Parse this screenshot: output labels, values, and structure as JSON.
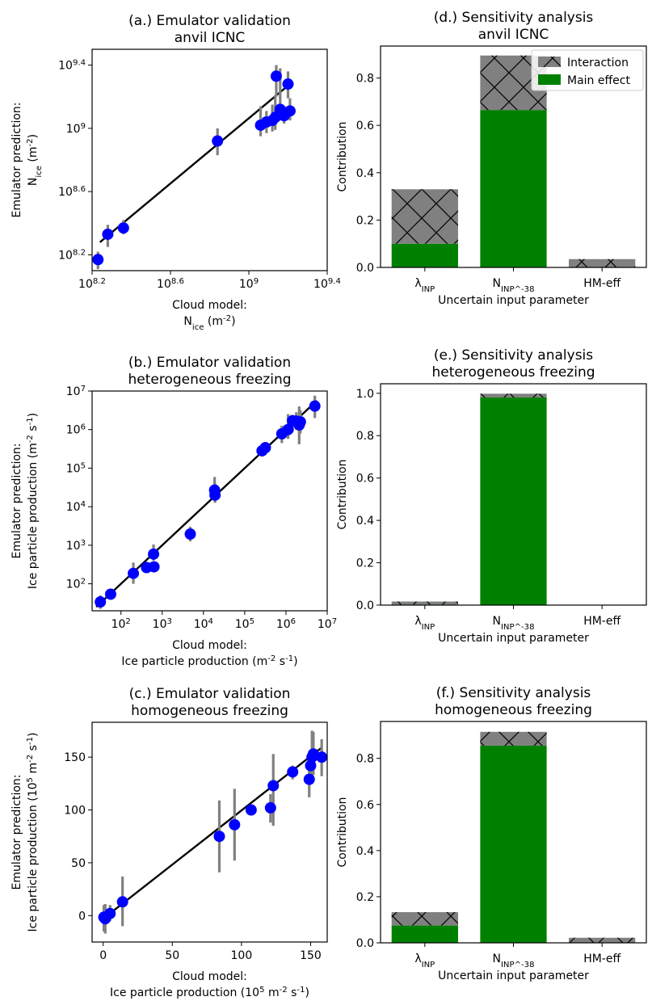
{
  "chart_data": [
    {
      "panel": "a",
      "type": "scatter",
      "title": [
        "(a.) Emulator validation",
        "anvil ICNC"
      ],
      "xlabel": [
        "Cloud model:",
        "N_ice (m^-2)"
      ],
      "ylabel": [
        "Emulator prediction:",
        "N_ice (m^-2)"
      ],
      "xscale": "log",
      "yscale": "log",
      "xlim": [
        8.2,
        9.4
      ],
      "ylim": [
        8.1,
        9.5
      ],
      "xticks": [
        {
          "v": 8.2,
          "b": "10",
          "e": "8.2"
        },
        {
          "v": 8.6,
          "b": "10",
          "e": "8.6"
        },
        {
          "v": 9.0,
          "b": "10",
          "e": "9"
        },
        {
          "v": 9.4,
          "b": "10",
          "e": "9.4"
        }
      ],
      "yticks": [
        {
          "v": 8.2,
          "b": "10",
          "e": "8.2"
        },
        {
          "v": 8.6,
          "b": "10",
          "e": "8.6"
        },
        {
          "v": 9.0,
          "b": "10",
          "e": "9"
        },
        {
          "v": 9.4,
          "b": "10",
          "e": "9.4"
        }
      ],
      "fit_line": [
        [
          8.24,
          8.28
        ],
        [
          9.2,
          9.27
        ]
      ],
      "points": [
        {
          "x": 8.23,
          "y": 8.17,
          "lo": 8.11,
          "hi": 8.22
        },
        {
          "x": 8.28,
          "y": 8.33,
          "lo": 8.25,
          "hi": 8.39
        },
        {
          "x": 8.36,
          "y": 8.37,
          "lo": 8.33,
          "hi": 8.42
        },
        {
          "x": 8.84,
          "y": 8.92,
          "lo": 8.83,
          "hi": 9.0
        },
        {
          "x": 9.06,
          "y": 9.02,
          "lo": 8.95,
          "hi": 9.14
        },
        {
          "x": 9.09,
          "y": 9.04,
          "lo": 8.97,
          "hi": 9.11
        },
        {
          "x": 9.12,
          "y": 9.05,
          "lo": 8.98,
          "hi": 9.15
        },
        {
          "x": 9.135,
          "y": 9.07,
          "lo": 8.99,
          "hi": 9.21
        },
        {
          "x": 9.14,
          "y": 9.33,
          "lo": 9.2,
          "hi": 9.4
        },
        {
          "x": 9.16,
          "y": 9.12,
          "lo": 9.05,
          "hi": 9.38
        },
        {
          "x": 9.18,
          "y": 9.08,
          "lo": 9.03,
          "hi": 9.14
        },
        {
          "x": 9.2,
          "y": 9.28,
          "lo": 9.19,
          "hi": 9.36
        },
        {
          "x": 9.21,
          "y": 9.11,
          "lo": 9.05,
          "hi": 9.19
        }
      ]
    },
    {
      "panel": "b",
      "type": "scatter",
      "title": [
        "(b.) Emulator validation",
        "heterogeneous freezing"
      ],
      "xlabel": [
        "Cloud model:",
        "Ice particle production  (m^-2 s^-1)"
      ],
      "ylabel": [
        "Emulator prediction:",
        "Ice particle production  (m^-2 s^-1)"
      ],
      "xscale": "log",
      "yscale": "log",
      "xlim": [
        1.3,
        7.0
      ],
      "ylim": [
        1.3,
        7.0
      ],
      "xticks": [
        {
          "v": 2,
          "b": "10",
          "e": "2"
        },
        {
          "v": 3,
          "b": "10",
          "e": "3"
        },
        {
          "v": 4,
          "b": "10",
          "e": "4"
        },
        {
          "v": 5,
          "b": "10",
          "e": "5"
        },
        {
          "v": 6,
          "b": "10",
          "e": "6"
        },
        {
          "v": 7,
          "b": "10",
          "e": "7"
        }
      ],
      "yticks": [
        {
          "v": 2,
          "b": "10",
          "e": "2"
        },
        {
          "v": 3,
          "b": "10",
          "e": "3"
        },
        {
          "v": 4,
          "b": "10",
          "e": "4"
        },
        {
          "v": 5,
          "b": "10",
          "e": "5"
        },
        {
          "v": 6,
          "b": "10",
          "e": "6"
        },
        {
          "v": 7,
          "b": "10",
          "e": "7"
        }
      ],
      "fit_line": [
        [
          1.4,
          1.4
        ],
        [
          6.75,
          6.75
        ]
      ],
      "points": [
        {
          "x": 1.5,
          "y": 1.53,
          "lo": 1.35,
          "hi": 1.7
        },
        {
          "x": 1.75,
          "y": 1.73,
          "lo": 1.63,
          "hi": 1.82
        },
        {
          "x": 2.3,
          "y": 2.27,
          "lo": 2.0,
          "hi": 2.55
        },
        {
          "x": 2.62,
          "y": 2.42,
          "lo": 2.3,
          "hi": 2.55
        },
        {
          "x": 2.79,
          "y": 2.77,
          "lo": 2.6,
          "hi": 3.02
        },
        {
          "x": 2.8,
          "y": 2.44,
          "lo": 2.32,
          "hi": 2.55
        },
        {
          "x": 3.68,
          "y": 3.29,
          "lo": 3.1,
          "hi": 3.48
        },
        {
          "x": 4.27,
          "y": 4.43,
          "lo": 4.2,
          "hi": 4.77
        },
        {
          "x": 4.28,
          "y": 4.3,
          "lo": 4.1,
          "hi": 4.6
        },
        {
          "x": 5.42,
          "y": 5.45,
          "lo": 5.3,
          "hi": 5.62
        },
        {
          "x": 5.5,
          "y": 5.53,
          "lo": 5.35,
          "hi": 5.68
        },
        {
          "x": 5.9,
          "y": 5.89,
          "lo": 5.65,
          "hi": 6.1
        },
        {
          "x": 6.05,
          "y": 6.0,
          "lo": 5.76,
          "hi": 6.4
        },
        {
          "x": 6.16,
          "y": 6.23,
          "lo": 5.95,
          "hi": 6.38
        },
        {
          "x": 6.25,
          "y": 6.22,
          "lo": 6.0,
          "hi": 6.45
        },
        {
          "x": 6.32,
          "y": 6.12,
          "lo": 5.62,
          "hi": 6.6
        },
        {
          "x": 6.35,
          "y": 6.2,
          "lo": 5.9,
          "hi": 6.5
        },
        {
          "x": 6.7,
          "y": 6.61,
          "lo": 6.3,
          "hi": 6.88
        }
      ]
    },
    {
      "panel": "c",
      "type": "scatter",
      "title": [
        "(c.) Emulator validation",
        "homogeneous freezing"
      ],
      "xlabel": [
        "Cloud model:",
        "Ice particle production  (10^5 m^-2 s^-1)"
      ],
      "ylabel": [
        "Emulator prediction:",
        "Ice particle production  (10^5 m^-2 s^-1)"
      ],
      "xscale": "linear",
      "yscale": "linear",
      "xlim": [
        -8,
        162
      ],
      "ylim": [
        -25,
        183
      ],
      "xticks": [
        0,
        50,
        100,
        150
      ],
      "yticks": [
        0,
        50,
        100,
        150
      ],
      "fit_line": [
        [
          0,
          -3
        ],
        [
          158,
          159
        ]
      ],
      "points": [
        {
          "x": 0.5,
          "y": -1.5,
          "lo": -15,
          "hi": 10
        },
        {
          "x": 1.5,
          "y": -3,
          "lo": -17,
          "hi": 11
        },
        {
          "x": 5,
          "y": 2,
          "lo": -5,
          "hi": 10
        },
        {
          "x": 14,
          "y": 13,
          "lo": -10,
          "hi": 37
        },
        {
          "x": 84,
          "y": 75,
          "lo": 41,
          "hi": 109
        },
        {
          "x": 95,
          "y": 86,
          "lo": 52,
          "hi": 120
        },
        {
          "x": 107,
          "y": 100,
          "lo": 95,
          "hi": 105
        },
        {
          "x": 121,
          "y": 102,
          "lo": 88,
          "hi": 115
        },
        {
          "x": 123,
          "y": 123,
          "lo": 85,
          "hi": 153
        },
        {
          "x": 137,
          "y": 136,
          "lo": 129,
          "hi": 142
        },
        {
          "x": 149,
          "y": 129,
          "lo": 112,
          "hi": 140
        },
        {
          "x": 150,
          "y": 142,
          "lo": 133,
          "hi": 150
        },
        {
          "x": 151,
          "y": 150,
          "lo": 130,
          "hi": 175
        },
        {
          "x": 152,
          "y": 153,
          "lo": 133,
          "hi": 174
        },
        {
          "x": 158,
          "y": 150,
          "lo": 132,
          "hi": 167
        }
      ]
    },
    {
      "panel": "d",
      "type": "bar",
      "stacked": true,
      "title": [
        "(d.) Sensitivity analysis",
        "anvil ICNC"
      ],
      "xlabel": "Uncertain input parameter",
      "ylabel": "Contribution",
      "ylim": [
        0,
        0.935
      ],
      "yticks": [
        "0.0",
        "0.2",
        "0.4",
        "0.6",
        "0.8"
      ],
      "categories": [
        "λ_INP",
        "N_INP^-38",
        "HM-eff"
      ],
      "series": [
        {
          "name": "Main effect",
          "color": "#008000",
          "values": [
            0.1,
            0.665,
            0.0
          ]
        },
        {
          "name": "Interaction",
          "color": "#808080",
          "hatch": "cross",
          "values": [
            0.23,
            0.23,
            0.035
          ]
        }
      ],
      "legend": {
        "placement": "top-right",
        "entries": [
          "Interaction",
          "Main effect"
        ]
      }
    },
    {
      "panel": "e",
      "type": "bar",
      "stacked": true,
      "title": [
        "(e.) Sensitivity analysis",
        "heterogeneous freezing"
      ],
      "xlabel": "Uncertain input parameter",
      "ylabel": "Contribution",
      "ylim": [
        0,
        1.045
      ],
      "yticks": [
        "0.0",
        "0.2",
        "0.4",
        "0.6",
        "0.8",
        "1.0"
      ],
      "categories": [
        "λ_INP",
        "N_INP^-38",
        "HM-eff"
      ],
      "series": [
        {
          "name": "Main effect",
          "color": "#008000",
          "values": [
            0.003,
            0.98,
            0.0
          ]
        },
        {
          "name": "Interaction",
          "color": "#808080",
          "hatch": "cross",
          "values": [
            0.014,
            0.018,
            0.0
          ]
        }
      ]
    },
    {
      "panel": "f",
      "type": "bar",
      "stacked": true,
      "title": [
        "(f.) Sensitivity analysis",
        "homogeneous freezing"
      ],
      "xlabel": "Uncertain input parameter",
      "ylabel": "Contribution",
      "ylim": [
        0,
        0.96
      ],
      "yticks": [
        "0.0",
        "0.2",
        "0.4",
        "0.6",
        "0.8"
      ],
      "categories": [
        "λ_INP",
        "N_INP^-38",
        "HM-eff"
      ],
      "series": [
        {
          "name": "Main effect",
          "color": "#008000",
          "values": [
            0.075,
            0.855,
            0.0
          ]
        },
        {
          "name": "Interaction",
          "color": "#808080",
          "hatch": "cross",
          "values": [
            0.058,
            0.06,
            0.022
          ]
        }
      ]
    }
  ],
  "colors": {
    "point": "#0000ff",
    "errorbar": "#808080",
    "fit_line": "#000000",
    "main_effect": "#008000",
    "interaction": "#808080"
  }
}
